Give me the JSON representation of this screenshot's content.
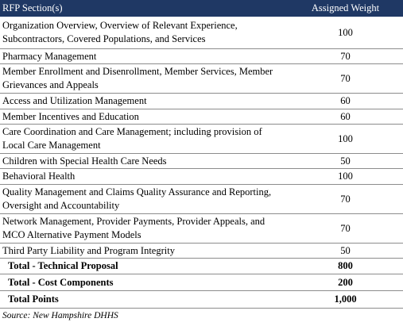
{
  "table": {
    "header": [
      "RFP Section(s)",
      "Assigned Weight"
    ],
    "rows": [
      [
        "Organization Overview, Overview of Relevant Experience, Subcontractors, Covered Populations, and Services",
        "100"
      ],
      [
        "Pharmacy Management",
        "70"
      ],
      [
        "Member Enrollment and Disenrollment, Member Services, Member Grievances and Appeals",
        "70"
      ],
      [
        "Access and Utilization Management",
        "60"
      ],
      [
        "Member Incentives and Education",
        "60"
      ],
      [
        "Care Coordination and Care Management; including provision of Local Care Management",
        "100"
      ],
      [
        "Children with Special Health Care Needs",
        "50"
      ],
      [
        "Behavioral Health",
        "100"
      ],
      [
        "Quality Management and Claims Quality Assurance and Reporting, Oversight and Accountability",
        "70"
      ],
      [
        "Network Management, Provider Payments, Provider Appeals, and MCO Alternative Payment Models",
        "70"
      ],
      [
        "Third Party Liability and Program Integrity",
        "50"
      ]
    ],
    "totals": [
      [
        "Total - Technical Proposal",
        "800"
      ],
      [
        "Total - Cost Components",
        "200"
      ],
      [
        "Total Points",
        "1,000"
      ]
    ]
  },
  "source": "Source: New Hampshire DHHS"
}
